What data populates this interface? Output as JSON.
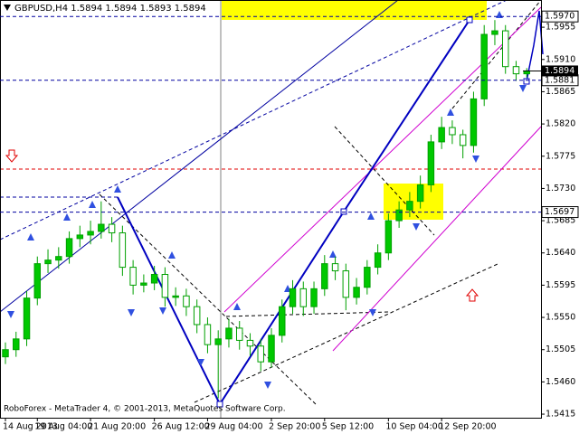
{
  "chart_data": {
    "type": "candlestick",
    "title": "GBPUSD,H4  1.5894 1.5894 1.5893 1.5894",
    "footer": "RoboForex - MetaTrader 4, © 2001-2013, MetaQuotes Software Corp.",
    "x": [
      "14 Aug 2013",
      null,
      null,
      "19 Aug 04:00",
      null,
      null,
      null,
      null,
      "21 Aug 20:00",
      null,
      null,
      null,
      null,
      null,
      "26 Aug 12:00",
      null,
      null,
      null,
      null,
      "29 Aug 04:00",
      null,
      null,
      null,
      null,
      null,
      "2 Sep 20:00",
      null,
      null,
      null,
      null,
      "5 Sep 12:00",
      null,
      null,
      null,
      null,
      null,
      "10 Sep 04:00",
      null,
      null,
      null,
      null,
      "12 Sep 20:00",
      null,
      null,
      null,
      null,
      null,
      null,
      null,
      null
    ],
    "open": [
      1.5495,
      1.5505,
      1.552,
      1.5577,
      1.5625,
      1.563,
      1.5635,
      1.566,
      1.5665,
      1.567,
      1.568,
      1.5668,
      1.562,
      1.5595,
      1.5598,
      1.561,
      1.5578,
      1.558,
      1.5565,
      1.554,
      1.5512,
      1.552,
      1.5535,
      1.5518,
      1.551,
      1.5488,
      1.5525,
      1.5565,
      1.559,
      1.5565,
      1.559,
      1.5625,
      1.5615,
      1.5578,
      1.5592,
      1.562,
      1.564,
      1.5685,
      1.57,
      1.5712,
      1.5735,
      1.5795,
      1.5815,
      1.5805,
      1.579,
      1.5855,
      1.5945,
      1.595,
      1.59,
      1.589
    ],
    "high": [
      1.5515,
      1.553,
      1.5587,
      1.5635,
      1.5645,
      1.5648,
      1.567,
      1.5678,
      1.5685,
      1.5712,
      1.569,
      1.5678,
      1.563,
      1.561,
      1.5622,
      1.562,
      1.5592,
      1.559,
      1.5575,
      1.555,
      1.5532,
      1.5548,
      1.5545,
      1.5528,
      1.552,
      1.5535,
      1.5575,
      1.5602,
      1.56,
      1.56,
      1.5637,
      1.5635,
      1.5625,
      1.5605,
      1.563,
      1.5652,
      1.5695,
      1.5712,
      1.5725,
      1.5748,
      1.5805,
      1.583,
      1.5825,
      1.5812,
      1.5865,
      1.5958,
      1.5965,
      1.5958,
      1.5908,
      1.5898
    ],
    "low": [
      1.5485,
      1.5495,
      1.551,
      1.5567,
      1.5612,
      1.5618,
      1.5625,
      1.5648,
      1.5652,
      1.566,
      1.5655,
      1.5608,
      1.5582,
      1.5585,
      1.5588,
      1.5565,
      1.5566,
      1.5552,
      1.5528,
      1.55,
      1.5437,
      1.5508,
      1.5505,
      1.5496,
      1.5475,
      1.548,
      1.5515,
      1.5555,
      1.5552,
      1.5555,
      1.558,
      1.5602,
      1.556,
      1.5568,
      1.5582,
      1.561,
      1.563,
      1.5675,
      1.569,
      1.5702,
      1.5725,
      1.5785,
      1.5792,
      1.5772,
      1.578,
      1.5845,
      1.593,
      1.589,
      1.588,
      1.5885
    ],
    "close": [
      1.5505,
      1.552,
      1.5577,
      1.5625,
      1.563,
      1.5635,
      1.566,
      1.5665,
      1.567,
      1.568,
      1.5668,
      1.562,
      1.5595,
      1.5598,
      1.561,
      1.5578,
      1.558,
      1.5565,
      1.554,
      1.5512,
      1.552,
      1.5535,
      1.5518,
      1.551,
      1.5488,
      1.5525,
      1.5565,
      1.559,
      1.5565,
      1.559,
      1.5625,
      1.5615,
      1.5578,
      1.5592,
      1.562,
      1.564,
      1.5685,
      1.57,
      1.5712,
      1.5735,
      1.5795,
      1.5815,
      1.5805,
      1.579,
      1.5855,
      1.5945,
      1.595,
      1.59,
      1.589,
      1.5894
    ],
    "up_color": "#00c800",
    "down_color": "#ffffff",
    "wick_color": "#00a000",
    "ylim": [
      1.541,
      1.5993
    ],
    "yticks": [
      1.5955,
      {
        "value": 1.591,
        "label": "1.5910"
      },
      1.5865,
      {
        "value": 1.582,
        "label": "1.5820"
      },
      1.5775,
      {
        "value": 1.573,
        "label": "1.5730"
      },
      1.5685,
      {
        "value": 1.564,
        "label": "1.5640"
      },
      1.5595,
      {
        "value": 1.555,
        "label": "1.5550"
      },
      1.5505,
      {
        "value": 1.546,
        "label": "1.5460"
      },
      1.5415
    ],
    "levels": [
      {
        "value": 1.597,
        "label": "1.5970"
      },
      1.5881,
      1.5697
    ],
    "current_price": 1.5894
  }
}
